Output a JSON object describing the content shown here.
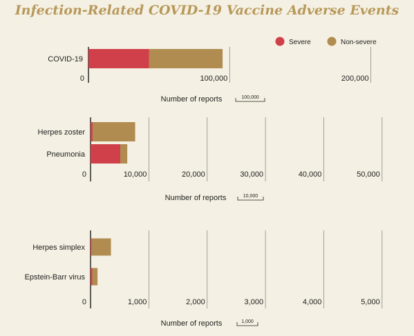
{
  "title": "Infection-Related COVID-19 Vaccine Adverse Events",
  "legend": [
    {
      "label": "Severe",
      "color": "#d0404a"
    },
    {
      "label": "Non-severe",
      "color": "#b08c51"
    }
  ],
  "chart_data": [
    {
      "type": "bar",
      "orientation": "horizontal",
      "stacked": true,
      "categories": [
        "COVID-19"
      ],
      "series": [
        {
          "name": "Severe",
          "values": [
            43000
          ]
        },
        {
          "name": "Non-severe",
          "values": [
            52000
          ]
        }
      ],
      "xlim": [
        0,
        210000
      ],
      "ticks": [
        0,
        100000,
        200000
      ],
      "tick_labels": [
        "0",
        "100,000",
        "200,000"
      ],
      "xlabel": "Number of reports",
      "scale_label": "100,000",
      "legend_position": "top-right"
    },
    {
      "type": "bar",
      "orientation": "horizontal",
      "stacked": true,
      "categories": [
        "Herpes zoster",
        "Pneumonia"
      ],
      "series": [
        {
          "name": "Severe",
          "values": [
            350,
            5100
          ]
        },
        {
          "name": "Non-severe",
          "values": [
            7300,
            1200
          ]
        }
      ],
      "xlim": [
        0,
        50500
      ],
      "ticks": [
        0,
        10000,
        20000,
        30000,
        40000,
        50000
      ],
      "tick_labels": [
        "0",
        "10,000",
        "20,000",
        "30,000",
        "40,000",
        "50,000"
      ],
      "xlabel": "Number of reports",
      "scale_label": "10,000"
    },
    {
      "type": "bar",
      "orientation": "horizontal",
      "stacked": true,
      "categories": [
        "Herpes simplex",
        "Epstein-Barr virus"
      ],
      "series": [
        {
          "name": "Severe",
          "values": [
            20,
            30
          ]
        },
        {
          "name": "Non-severe",
          "values": [
            330,
            90
          ]
        }
      ],
      "xlim": [
        0,
        5050
      ],
      "ticks": [
        0,
        1000,
        2000,
        3000,
        4000,
        5000
      ],
      "tick_labels": [
        "0",
        "1,000",
        "2,000",
        "3,000",
        "4,000",
        "5,000"
      ],
      "xlabel": "Number of reports",
      "scale_label": "1,000"
    }
  ]
}
